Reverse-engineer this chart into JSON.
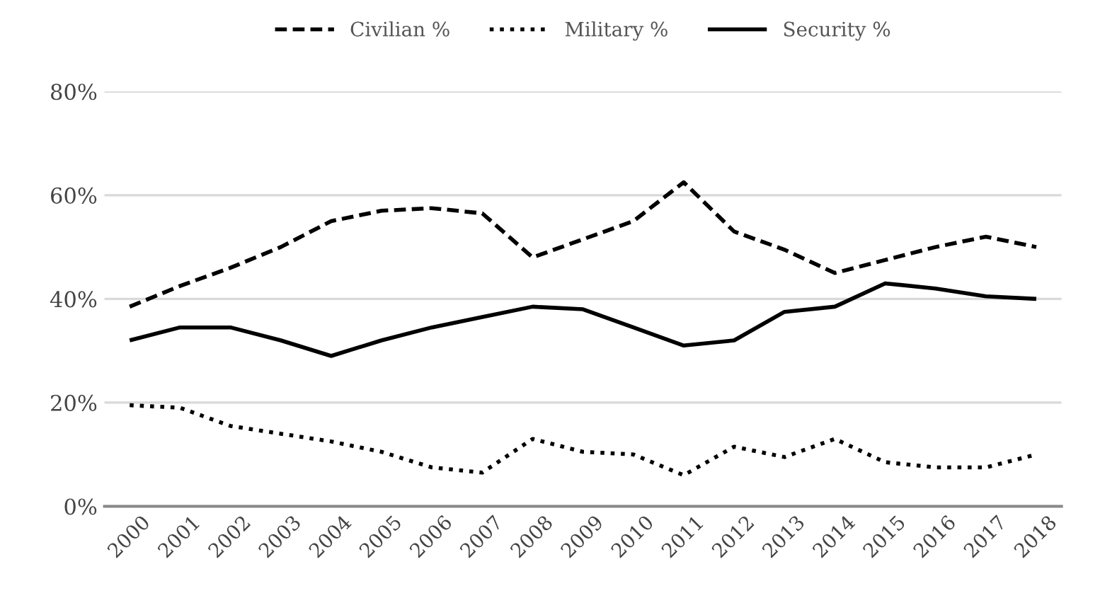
{
  "chart_data": {
    "type": "line",
    "categories": [
      "2000",
      "2001",
      "2002",
      "2003",
      "2004",
      "2005",
      "2006",
      "2007",
      "2008",
      "2009",
      "2010",
      "2011",
      "2012",
      "2013",
      "2014",
      "2015",
      "2016",
      "2017",
      "2018"
    ],
    "series": [
      {
        "name": "Civilian %",
        "color": "#000000",
        "line_style": "dashed",
        "values": [
          38.5,
          42.5,
          46,
          50,
          55,
          57,
          57.5,
          56.5,
          48,
          51.5,
          55,
          62.5,
          53,
          49.5,
          45,
          47.5,
          50,
          52,
          50
        ]
      },
      {
        "name": "Military %",
        "color": "#000000",
        "line_style": "dotted",
        "values": [
          19.5,
          19,
          15.5,
          14,
          12.5,
          10.5,
          7.5,
          6.5,
          13,
          10.5,
          10,
          6,
          11.5,
          9.5,
          13,
          8.5,
          7.5,
          7.5,
          10
        ]
      },
      {
        "name": "Security %",
        "color": "#000000",
        "line_style": "solid",
        "values": [
          32,
          34.5,
          34.5,
          32,
          29,
          32,
          34.5,
          36.5,
          38.5,
          38,
          34.5,
          31,
          32,
          37.5,
          38.5,
          43,
          42,
          40.5,
          40
        ]
      }
    ],
    "ylim": [
      0,
      80
    ],
    "yticks": [
      {
        "value": 0,
        "label": "0%"
      },
      {
        "value": 20,
        "label": "20%"
      },
      {
        "value": 40,
        "label": "40%"
      },
      {
        "value": 60,
        "label": "60%"
      },
      {
        "value": 80,
        "label": "80%"
      }
    ],
    "grid": "y",
    "legend": "top",
    "marker": "none"
  }
}
